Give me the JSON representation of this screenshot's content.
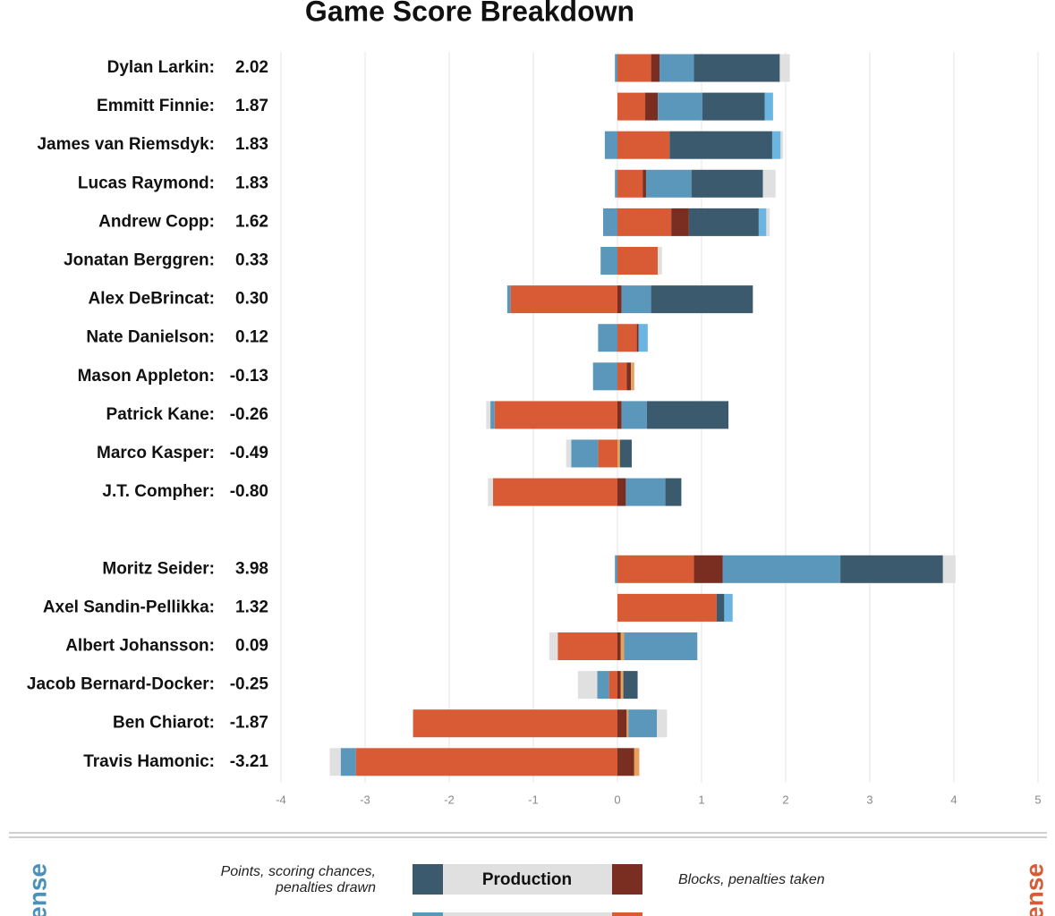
{
  "chart_data": {
    "type": "diverging-stacked-bar",
    "title": "Game Score Breakdown",
    "categories": [
      "Dylan Larkin:",
      "Emmitt Finnie:",
      "James van Riemsdyk:",
      "Lucas Raymond:",
      "Andrew Copp:",
      "Jonatan Berggren:",
      "Alex DeBrincat:",
      "Nate Danielson:",
      "Mason Appleton:",
      "Patrick Kane:",
      "Marco Kasper:",
      "J.T. Compher:",
      null,
      "Moritz Seider:",
      "Axel Sandin-Pellikka:",
      "Albert Johansson:",
      "Jacob Bernard-Docker:",
      "Ben Chiarot:",
      "Travis Hamonic:"
    ],
    "scores": [
      2.02,
      1.87,
      1.83,
      1.83,
      1.62,
      0.33,
      0.3,
      0.12,
      -0.13,
      -0.26,
      -0.49,
      -0.8,
      null,
      3.98,
      1.32,
      0.09,
      -0.25,
      -1.87,
      -3.21
    ],
    "score_labels": [
      "2.02",
      "1.87",
      "1.83",
      "1.83",
      "1.62",
      "0.33",
      "0.30",
      "0.12",
      "-0.13",
      "-0.26",
      "-0.49",
      "-0.80",
      null,
      "3.98",
      "1.32",
      "0.09",
      "-0.25",
      "-1.87",
      "-3.21"
    ],
    "series": [
      {
        "color": "#d95b35",
        "values": [
          0.4,
          0.33,
          0.62,
          0.3,
          0.64,
          0.48,
          0,
          0.23,
          0.11,
          0,
          0,
          0,
          null,
          0.91,
          1.18,
          0,
          0,
          0,
          0
        ]
      },
      {
        "color": "#7a2e22",
        "values": [
          0.1,
          0.15,
          0,
          0.04,
          0.21,
          0,
          0.05,
          0.02,
          0.05,
          0.05,
          0,
          0.1,
          null,
          0.34,
          0,
          0.04,
          0.04,
          0.11,
          0.2
        ]
      },
      {
        "color": "#e8a15a",
        "values": [
          0,
          0,
          0,
          0,
          0,
          0,
          0,
          0,
          0.04,
          0,
          0.03,
          0,
          null,
          0,
          0,
          0.04,
          0.03,
          0.02,
          0.06
        ]
      },
      {
        "color": "#5b97bb",
        "values": [
          0.41,
          0.53,
          0,
          0.54,
          0,
          0,
          0.35,
          0,
          0,
          0.3,
          0,
          0.47,
          null,
          1.4,
          0,
          0.87,
          0,
          0.34,
          0
        ]
      },
      {
        "color": "#3b5a6e",
        "values": [
          1.02,
          0.74,
          1.22,
          0.85,
          0.83,
          0,
          1.21,
          0,
          0,
          0.97,
          0.14,
          0.19,
          null,
          1.22,
          0.09,
          0,
          0.17,
          0,
          0
        ]
      },
      {
        "color": "#6bb5e0",
        "values": [
          0,
          0.1,
          0.1,
          0,
          0.09,
          0,
          0,
          0.11,
          0,
          0,
          0,
          0,
          null,
          0,
          0.1,
          0,
          0,
          0,
          0
        ]
      },
      {
        "color": "#e0e0e0",
        "values": [
          0.12,
          0,
          0.03,
          0.15,
          0.04,
          0.05,
          0,
          0,
          0,
          0,
          0,
          0,
          null,
          0.15,
          0,
          0,
          0,
          0.12,
          0
        ]
      },
      {
        "color": "#d95b35",
        "values": [
          0,
          0,
          0,
          0,
          0,
          0,
          -1.27,
          0,
          0,
          -1.46,
          -0.23,
          -1.48,
          null,
          0,
          0,
          -0.71,
          -0.1,
          -2.43,
          -3.11
        ]
      },
      {
        "color": "#5b97bb",
        "values": [
          -0.03,
          0,
          -0.15,
          -0.03,
          -0.17,
          -0.2,
          -0.04,
          -0.23,
          -0.29,
          -0.05,
          -0.32,
          0,
          null,
          -0.03,
          0,
          0,
          -0.14,
          0,
          -0.18
        ]
      },
      {
        "color": "#e0e0e0",
        "values": [
          0,
          0,
          0,
          0,
          0,
          0,
          0,
          0,
          0,
          -0.05,
          -0.06,
          -0.06,
          null,
          0,
          0,
          -0.1,
          -0.23,
          0,
          -0.13
        ]
      }
    ],
    "xlim": [
      -4,
      5
    ],
    "xticks": [
      -4,
      -3,
      -2,
      -1,
      0,
      1,
      2,
      3,
      4,
      5
    ],
    "grid": true
  },
  "legend": {
    "production_left": [
      "Points, scoring chances,",
      "penalties drawn"
    ],
    "production_label": "Production",
    "production_right": "Blocks, penalties taken",
    "offense": "Offense",
    "defense": "Defense"
  }
}
